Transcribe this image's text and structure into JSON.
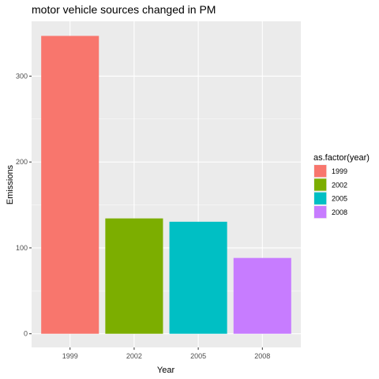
{
  "chart_data": {
    "type": "bar",
    "title": "motor vehicle sources changed in PM",
    "xlabel": "Year",
    "ylabel": "Emissions",
    "categories": [
      "1999",
      "2002",
      "2005",
      "2008"
    ],
    "values": [
      346.82,
      134.31,
      130.43,
      88.28
    ],
    "ylim": [
      -15.9,
      363.8
    ],
    "yticks": [
      0,
      100,
      200,
      300
    ],
    "grid": true,
    "legend": {
      "title": "as.factor(year)",
      "position": "right",
      "entries": [
        "1999",
        "2002",
        "2005",
        "2008"
      ]
    },
    "colors": [
      "#F8766D",
      "#7CAE00",
      "#00BFC4",
      "#C77CFF"
    ],
    "panel_background": "#EBEBEB",
    "grid_color": "#FFFFFF"
  }
}
